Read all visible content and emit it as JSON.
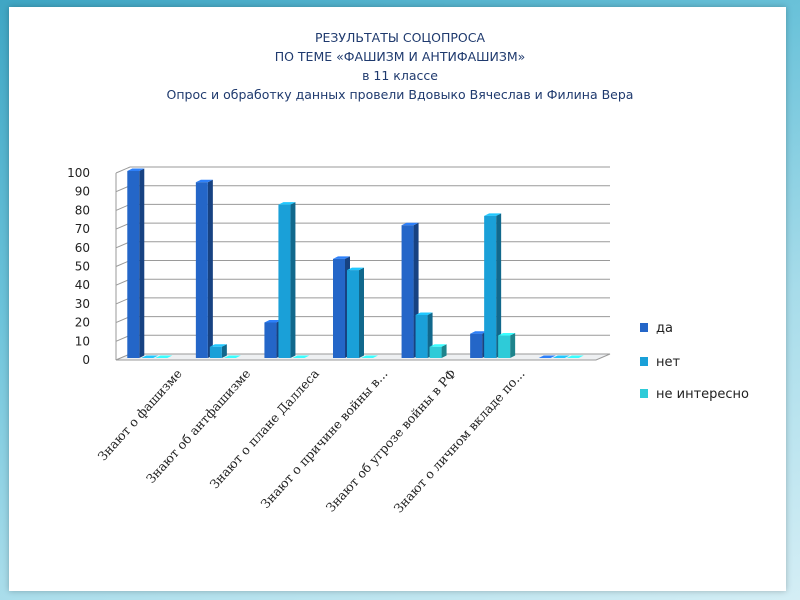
{
  "slide": {
    "title_lines": [
      "РЕЗУЛЬТАТЫ СОЦОПРОСА",
      "ПО ТЕМЕ «ФАШИЗМ И АНТИФАШИЗМ»",
      "в 11 классе",
      "Опрос  и обработку данных провели Вдовыко Вячеслав и Филина Вера"
    ]
  },
  "chart_data": {
    "type": "bar",
    "categories": [
      "Знают о фашизме",
      "Знают об антфашизме",
      "Знают о плане Даллеса",
      "Знают о причине войны в...",
      "Знают об угрозе войны в РФ",
      "Знают о личном вкладе по...",
      ""
    ],
    "series": [
      {
        "name": "да",
        "color": "#2466c8",
        "values": [
          100,
          94,
          19,
          53,
          71,
          13,
          0
        ]
      },
      {
        "name": "нет",
        "color": "#1aa0d8",
        "values": [
          0,
          6,
          82,
          47,
          23,
          76,
          0
        ]
      },
      {
        "name": "не интересно",
        "color": "#2ecbd8",
        "values": [
          0,
          0,
          0,
          0,
          6,
          12,
          0
        ]
      }
    ],
    "ylim": [
      0,
      100
    ],
    "yticks": [
      0,
      10,
      20,
      30,
      40,
      50,
      60,
      70,
      80,
      90,
      100
    ],
    "grid": true,
    "legend": "right"
  }
}
